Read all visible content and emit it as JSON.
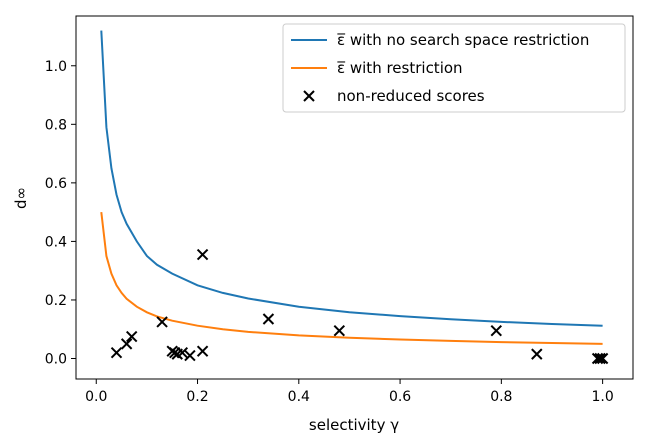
{
  "chart_data": {
    "type": "line",
    "xlabel": "selectivity γ",
    "ylabel": "d∞",
    "xlim": [
      -0.04,
      1.06
    ],
    "ylim": [
      -0.07,
      1.17
    ],
    "xticks": [
      0.0,
      0.2,
      0.4,
      0.6,
      0.8,
      1.0
    ],
    "yticks": [
      0.0,
      0.2,
      0.4,
      0.6,
      0.8,
      1.0
    ],
    "xtick_labels": [
      "0.0",
      "0.2",
      "0.4",
      "0.6",
      "0.8",
      "1.0"
    ],
    "ytick_labels": [
      "0.0",
      "0.2",
      "0.4",
      "0.6",
      "0.8",
      "1.0"
    ],
    "grid": false,
    "legend_position": "top-right",
    "series": [
      {
        "name": "ε̅ with no search space restriction",
        "kind": "line",
        "color": "#1f77b4",
        "x": [
          0.01,
          0.02,
          0.03,
          0.04,
          0.05,
          0.06,
          0.08,
          0.1,
          0.12,
          0.15,
          0.2,
          0.25,
          0.3,
          0.4,
          0.5,
          0.6,
          0.7,
          0.8,
          0.9,
          1.0
        ],
        "y": [
          1.12,
          0.79,
          0.65,
          0.56,
          0.5,
          0.46,
          0.4,
          0.35,
          0.32,
          0.29,
          0.25,
          0.224,
          0.205,
          0.177,
          0.158,
          0.145,
          0.134,
          0.125,
          0.118,
          0.112
        ]
      },
      {
        "name": "ε̅ with restriction",
        "kind": "line",
        "color": "#ff7f0e",
        "x": [
          0.01,
          0.02,
          0.03,
          0.04,
          0.05,
          0.06,
          0.08,
          0.1,
          0.12,
          0.15,
          0.2,
          0.25,
          0.3,
          0.4,
          0.5,
          0.6,
          0.7,
          0.8,
          0.9,
          1.0
        ],
        "y": [
          0.5,
          0.35,
          0.29,
          0.25,
          0.224,
          0.204,
          0.177,
          0.158,
          0.144,
          0.129,
          0.112,
          0.1,
          0.091,
          0.079,
          0.071,
          0.065,
          0.06,
          0.056,
          0.053,
          0.05
        ]
      },
      {
        "name": "non-reduced scores",
        "kind": "scatter",
        "marker": "x",
        "color": "#000000",
        "x": [
          0.04,
          0.06,
          0.07,
          0.13,
          0.15,
          0.155,
          0.16,
          0.17,
          0.185,
          0.21,
          0.21,
          0.34,
          0.48,
          0.79,
          0.87,
          0.99,
          0.995,
          1.0
        ],
        "y": [
          0.02,
          0.05,
          0.075,
          0.125,
          0.025,
          0.02,
          0.015,
          0.02,
          0.01,
          0.355,
          0.025,
          0.135,
          0.095,
          0.095,
          0.015,
          0.0,
          0.0,
          0.0
        ]
      }
    ]
  }
}
